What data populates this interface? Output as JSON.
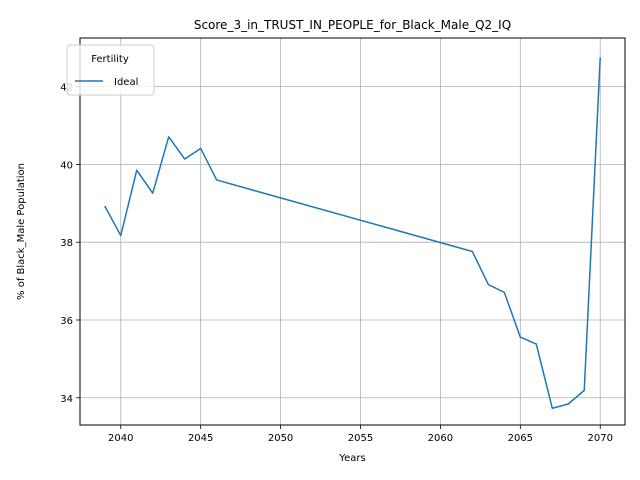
{
  "chart_data": {
    "type": "line",
    "title": "Score_3_in_TRUST_IN_PEOPLE_for_Black_Male_Q2_IQ",
    "xlabel": "Years",
    "ylabel": "% of Black_Male Population",
    "xlim": [
      2037.45,
      2071.55
    ],
    "ylim": [
      33.3,
      43.25
    ],
    "xticks": [
      2040,
      2045,
      2050,
      2055,
      2060,
      2065,
      2070
    ],
    "yticks": [
      34,
      36,
      38,
      40,
      42
    ],
    "grid": true,
    "legend": {
      "title": "Fertility",
      "placement": "top-left"
    },
    "series": [
      {
        "name": "Ideal",
        "color": "#1f77b4",
        "x": [
          2039,
          2040,
          2041,
          2042,
          2043,
          2044,
          2045,
          2046,
          2062,
          2063,
          2064,
          2065,
          2066,
          2067,
          2068,
          2069,
          2070
        ],
        "y": [
          38.93,
          38.17,
          39.85,
          39.26,
          40.71,
          40.14,
          40.41,
          39.6,
          37.76,
          36.91,
          36.71,
          35.56,
          35.38,
          33.73,
          33.84,
          34.19,
          42.75
        ]
      }
    ]
  }
}
